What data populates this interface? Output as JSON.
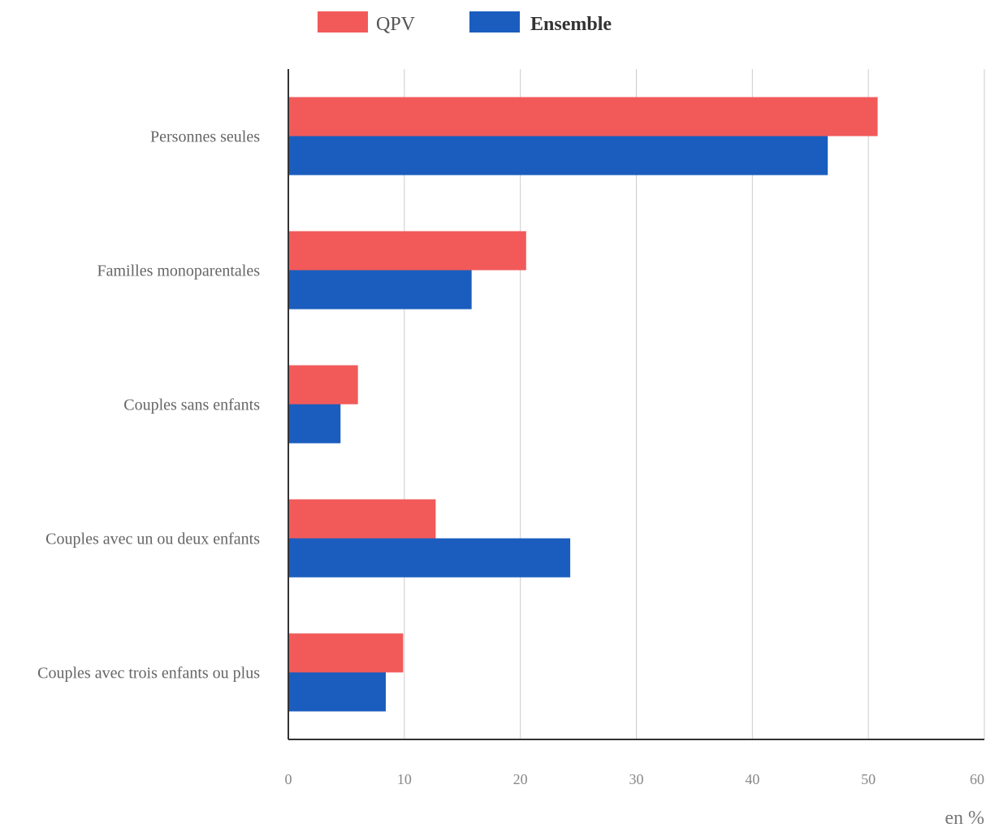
{
  "chart_data": {
    "type": "bar",
    "orientation": "horizontal",
    "categories": [
      "Personnes seules",
      "Familles monoparentales",
      "Couples sans enfants",
      "Couples avec un ou deux enfants",
      "Couples avec trois enfants ou plus"
    ],
    "series": [
      {
        "name": "QPV",
        "color": "#f25a5a",
        "values": [
          50.8,
          20.5,
          6.0,
          12.7,
          9.9
        ]
      },
      {
        "name": "Ensemble",
        "color": "#1a5dbe",
        "values": [
          46.5,
          15.8,
          4.5,
          24.3,
          8.4
        ]
      }
    ],
    "xlim": [
      0,
      60
    ],
    "xticks": [
      "0",
      "10",
      "20",
      "30",
      "40",
      "50",
      "60"
    ],
    "unit_label": "en %",
    "legend_position": "top",
    "grid": true
  }
}
